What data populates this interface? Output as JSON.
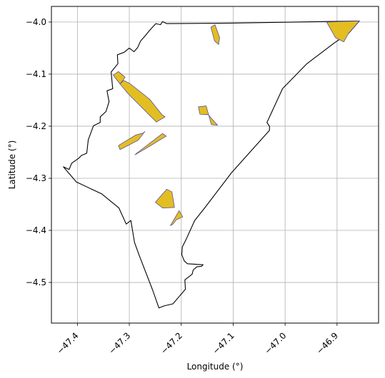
{
  "chart_data": {
    "type": "map",
    "xlabel": "Longitude (°)",
    "ylabel": "Latitude (°)",
    "xlim": [
      -47.45,
      -46.82
    ],
    "ylim": [
      -4.578,
      -3.97
    ],
    "x_ticks": [
      -47.4,
      -47.3,
      -47.2,
      -47.1,
      -47.0,
      -46.9
    ],
    "x_tick_labels": [
      "−47.4",
      "−47.3",
      "−47.2",
      "−47.1",
      "−47.0",
      "−46.9"
    ],
    "y_ticks": [
      -4.0,
      -4.1,
      -4.2,
      -4.3,
      -4.4,
      -4.5
    ],
    "y_tick_labels": [
      "−4.0",
      "−4.1",
      "−4.2",
      "−4.3",
      "−4.4",
      "−4.5"
    ],
    "grid": true,
    "colors": {
      "boundary": "#000000",
      "patch_fill": "#e2be23",
      "patch_edge": "#4a3fa0",
      "grid": "#b0b0b0"
    },
    "boundary": [
      [
        -47.427,
        -4.278
      ],
      [
        -47.402,
        -4.307
      ],
      [
        -47.353,
        -4.33
      ],
      [
        -47.32,
        -4.357
      ],
      [
        -47.306,
        -4.388
      ],
      [
        -47.297,
        -4.381
      ],
      [
        -47.29,
        -4.423
      ],
      [
        -47.281,
        -4.448
      ],
      [
        -47.255,
        -4.515
      ],
      [
        -47.243,
        -4.549
      ],
      [
        -47.233,
        -4.545
      ],
      [
        -47.216,
        -4.541
      ],
      [
        -47.204,
        -4.527
      ],
      [
        -47.192,
        -4.513
      ],
      [
        -47.193,
        -4.495
      ],
      [
        -47.179,
        -4.484
      ],
      [
        -47.177,
        -4.476
      ],
      [
        -47.17,
        -4.47
      ],
      [
        -47.161,
        -4.469
      ],
      [
        -47.158,
        -4.466
      ],
      [
        -47.188,
        -4.464
      ],
      [
        -47.194,
        -4.459
      ],
      [
        -47.199,
        -4.447
      ],
      [
        -47.198,
        -4.432
      ],
      [
        -47.19,
        -4.416
      ],
      [
        -47.174,
        -4.381
      ],
      [
        -47.155,
        -4.357
      ],
      [
        -47.103,
        -4.289
      ],
      [
        -47.03,
        -4.208
      ],
      [
        -47.03,
        -4.2
      ],
      [
        -47.035,
        -4.193
      ],
      [
        -47.005,
        -4.128
      ],
      [
        -46.958,
        -4.08
      ],
      [
        -46.905,
        -4.04
      ],
      [
        -46.878,
        -4.022
      ],
      [
        -46.857,
        -3.998
      ],
      [
        -46.981,
        -4.0
      ],
      [
        -47.11,
        -4.002
      ],
      [
        -47.228,
        -4.003
      ],
      [
        -47.236,
        -3.999
      ],
      [
        -47.24,
        -4.005
      ],
      [
        -47.249,
        -4.003
      ],
      [
        -47.26,
        -4.015
      ],
      [
        -47.27,
        -4.027
      ],
      [
        -47.278,
        -4.036
      ],
      [
        -47.284,
        -4.049
      ],
      [
        -47.291,
        -4.057
      ],
      [
        -47.3,
        -4.05
      ],
      [
        -47.31,
        -4.058
      ],
      [
        -47.323,
        -4.063
      ],
      [
        -47.322,
        -4.08
      ],
      [
        -47.335,
        -4.096
      ],
      [
        -47.332,
        -4.128
      ],
      [
        -47.343,
        -4.132
      ],
      [
        -47.339,
        -4.153
      ],
      [
        -47.345,
        -4.172
      ],
      [
        -47.356,
        -4.182
      ],
      [
        -47.356,
        -4.193
      ],
      [
        -47.369,
        -4.199
      ],
      [
        -47.379,
        -4.226
      ],
      [
        -47.382,
        -4.252
      ],
      [
        -47.392,
        -4.256
      ],
      [
        -47.398,
        -4.262
      ],
      [
        -47.411,
        -4.271
      ],
      [
        -47.416,
        -4.283
      ],
      [
        -47.427,
        -4.278
      ]
    ],
    "patches": [
      {
        "coords": [
          [
            -47.331,
            -4.102
          ],
          [
            -47.321,
            -4.095
          ],
          [
            -47.308,
            -4.106
          ],
          [
            -47.318,
            -4.119
          ]
        ]
      },
      {
        "coords": [
          [
            -47.311,
            -4.112
          ],
          [
            -47.299,
            -4.118
          ],
          [
            -47.28,
            -4.133
          ],
          [
            -47.261,
            -4.148
          ],
          [
            -47.237,
            -4.178
          ],
          [
            -47.231,
            -4.182
          ],
          [
            -47.248,
            -4.192
          ],
          [
            -47.282,
            -4.158
          ],
          [
            -47.301,
            -4.139
          ],
          [
            -47.318,
            -4.119
          ]
        ]
      },
      {
        "coords": [
          [
            -47.143,
            -4.01
          ],
          [
            -47.135,
            -4.005
          ],
          [
            -47.126,
            -4.03
          ],
          [
            -47.128,
            -4.043
          ],
          [
            -47.136,
            -4.036
          ]
        ]
      },
      {
        "coords": [
          [
            -47.167,
            -4.163
          ],
          [
            -47.152,
            -4.161
          ],
          [
            -47.142,
            -4.197
          ],
          [
            -47.13,
            -4.198
          ],
          [
            -47.148,
            -4.178
          ],
          [
            -47.164,
            -4.177
          ]
        ]
      },
      {
        "coords": [
          [
            -47.321,
            -4.237
          ],
          [
            -47.288,
            -4.217
          ],
          [
            -47.273,
            -4.213
          ],
          [
            -47.27,
            -4.21
          ],
          [
            -47.283,
            -4.227
          ],
          [
            -47.318,
            -4.245
          ]
        ]
      },
      {
        "coords": [
          [
            -47.286,
            -4.252
          ],
          [
            -47.236,
            -4.214
          ],
          [
            -47.229,
            -4.219
          ],
          [
            -47.26,
            -4.238
          ],
          [
            -47.289,
            -4.255
          ]
        ]
      },
      {
        "coords": [
          [
            -47.25,
            -4.346
          ],
          [
            -47.228,
            -4.321
          ],
          [
            -47.218,
            -4.326
          ],
          [
            -47.213,
            -4.356
          ],
          [
            -47.236,
            -4.357
          ]
        ]
      },
      {
        "coords": [
          [
            -47.221,
            -4.391
          ],
          [
            -47.204,
            -4.362
          ],
          [
            -47.197,
            -4.374
          ],
          [
            -47.21,
            -4.38
          ],
          [
            -47.216,
            -4.388
          ]
        ]
      },
      {
        "coords": [
          [
            -46.92,
            -4.0
          ],
          [
            -46.857,
            -3.998
          ],
          [
            -46.878,
            -4.022
          ],
          [
            -46.887,
            -4.038
          ],
          [
            -46.903,
            -4.03
          ]
        ]
      }
    ]
  }
}
